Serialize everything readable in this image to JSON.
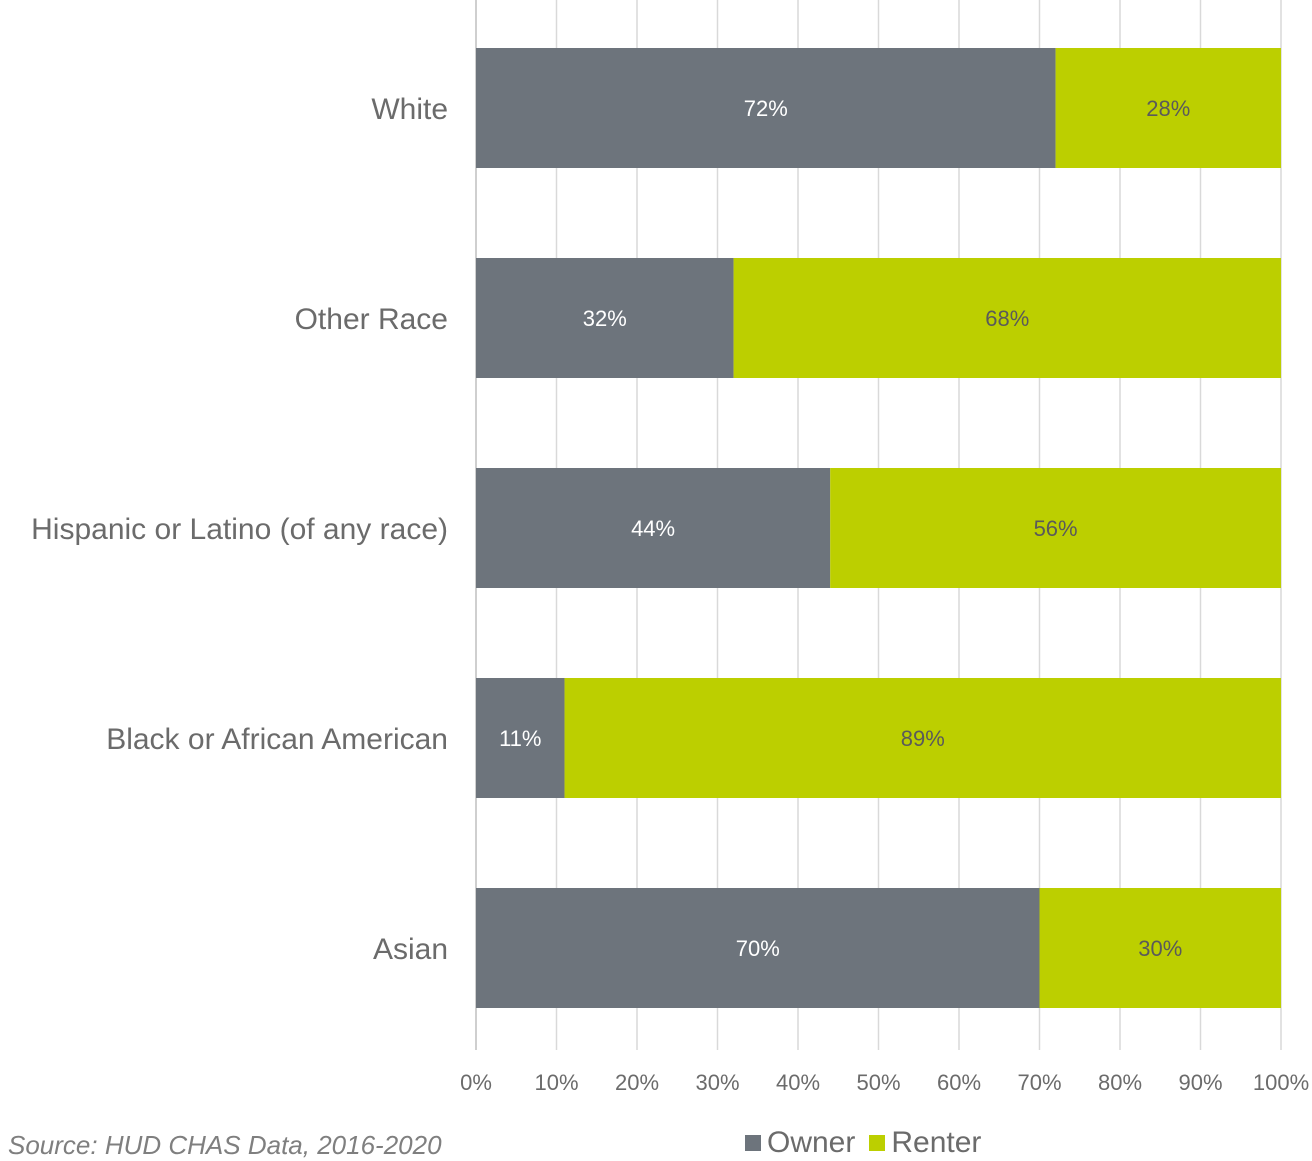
{
  "chart_data": {
    "type": "bar",
    "orientation": "horizontal",
    "stacked": true,
    "categories": [
      "White",
      "Other Race",
      "Hispanic or Latino (of any race)",
      "Black or African American",
      "Asian"
    ],
    "series": [
      {
        "name": "Owner",
        "color": "#6d747c",
        "label_color": "#ffffff",
        "values": [
          72,
          32,
          44,
          11,
          70
        ],
        "labels": [
          "72%",
          "32%",
          "44%",
          "11%",
          "70%"
        ]
      },
      {
        "name": "Renter",
        "color": "#bccf00",
        "label_color": "#5a5a5a",
        "values": [
          28,
          68,
          56,
          89,
          30
        ],
        "labels": [
          "28%",
          "68%",
          "56%",
          "89%",
          "30%"
        ]
      }
    ],
    "xlim": [
      0,
      100
    ],
    "x_ticks": [
      "0%",
      "10%",
      "20%",
      "30%",
      "40%",
      "50%",
      "60%",
      "70%",
      "80%",
      "90%",
      "100%"
    ],
    "grid": "vertical",
    "legend_position": "bottom"
  },
  "source": "Source: HUD CHAS Data, 2016-2020"
}
